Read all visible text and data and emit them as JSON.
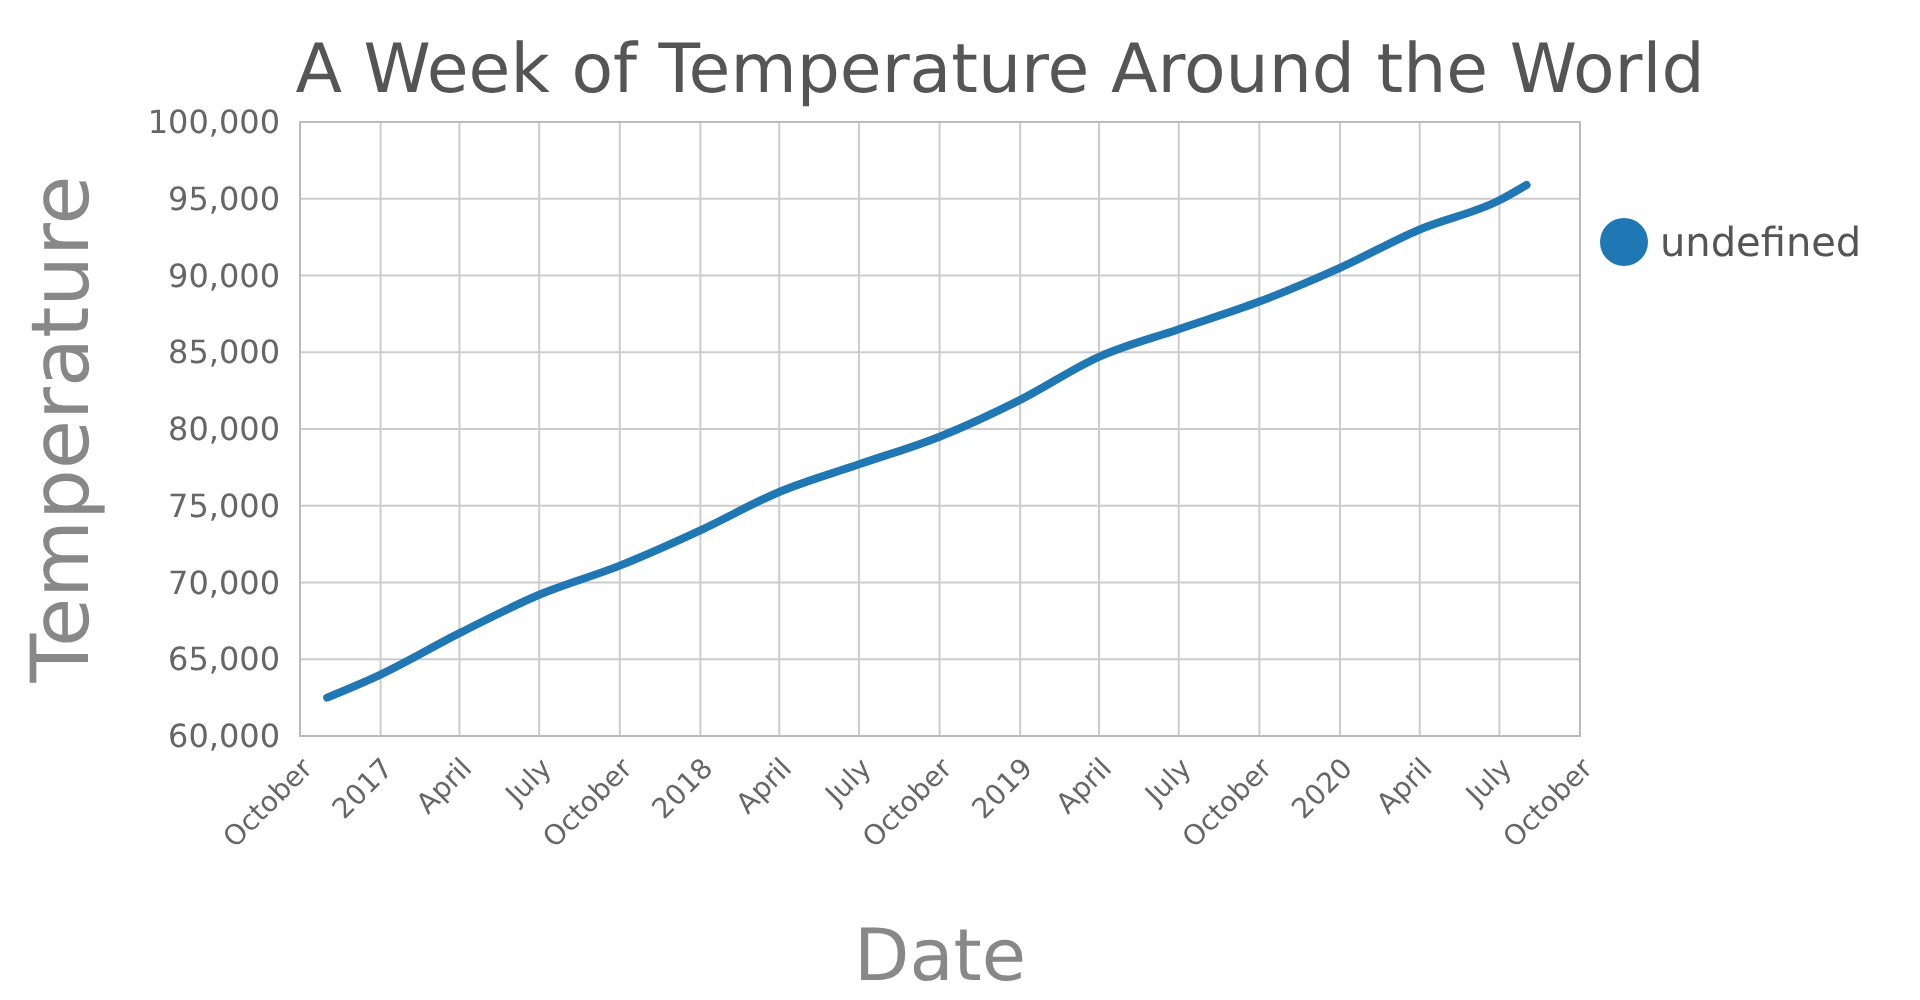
{
  "chart_data": {
    "type": "line",
    "title": "A Week of Temperature Around the World",
    "xlabel": "Date",
    "ylabel": "Temperature",
    "x": [
      "2016-11-01",
      "2017-01-01",
      "2017-04-01",
      "2017-07-01",
      "2017-10-01",
      "2018-01-01",
      "2018-04-01",
      "2018-07-01",
      "2018-10-01",
      "2019-01-01",
      "2019-04-01",
      "2019-07-01",
      "2019-10-01",
      "2020-01-01",
      "2020-04-01",
      "2020-07-01",
      "2020-08-01"
    ],
    "series": [
      {
        "name": "undefined",
        "color": "#1f77b4",
        "values": [
          62500,
          64000,
          66700,
          69200,
          71100,
          73400,
          75900,
          77700,
          79500,
          81900,
          84700,
          86500,
          88300,
          90500,
          93000,
          94900,
          95900
        ]
      }
    ],
    "xlim": [
      "2016-10-01",
      "2020-10-01"
    ],
    "xticks": [
      {
        "value": "2016-10-01",
        "label": "October"
      },
      {
        "value": "2017-01-01",
        "label": "2017"
      },
      {
        "value": "2017-04-01",
        "label": "April"
      },
      {
        "value": "2017-07-01",
        "label": "July"
      },
      {
        "value": "2017-10-01",
        "label": "October"
      },
      {
        "value": "2018-01-01",
        "label": "2018"
      },
      {
        "value": "2018-04-01",
        "label": "April"
      },
      {
        "value": "2018-07-01",
        "label": "July"
      },
      {
        "value": "2018-10-01",
        "label": "October"
      },
      {
        "value": "2019-01-01",
        "label": "2019"
      },
      {
        "value": "2019-04-01",
        "label": "April"
      },
      {
        "value": "2019-07-01",
        "label": "July"
      },
      {
        "value": "2019-10-01",
        "label": "October"
      },
      {
        "value": "2020-01-01",
        "label": "2020"
      },
      {
        "value": "2020-04-01",
        "label": "April"
      },
      {
        "value": "2020-07-01",
        "label": "July"
      },
      {
        "value": "2020-10-01",
        "label": "October"
      }
    ],
    "ylim": [
      60000,
      100000
    ],
    "yticks": [
      {
        "value": 60000,
        "label": "60,000"
      },
      {
        "value": 65000,
        "label": "65,000"
      },
      {
        "value": 70000,
        "label": "70,000"
      },
      {
        "value": 75000,
        "label": "75,000"
      },
      {
        "value": 80000,
        "label": "80,000"
      },
      {
        "value": 85000,
        "label": "85,000"
      },
      {
        "value": 90000,
        "label": "90,000"
      },
      {
        "value": 95000,
        "label": "95,000"
      },
      {
        "value": 100000,
        "label": "100,000"
      }
    ],
    "grid": true,
    "legend": "right",
    "marker": "none",
    "line_style": "solid"
  }
}
